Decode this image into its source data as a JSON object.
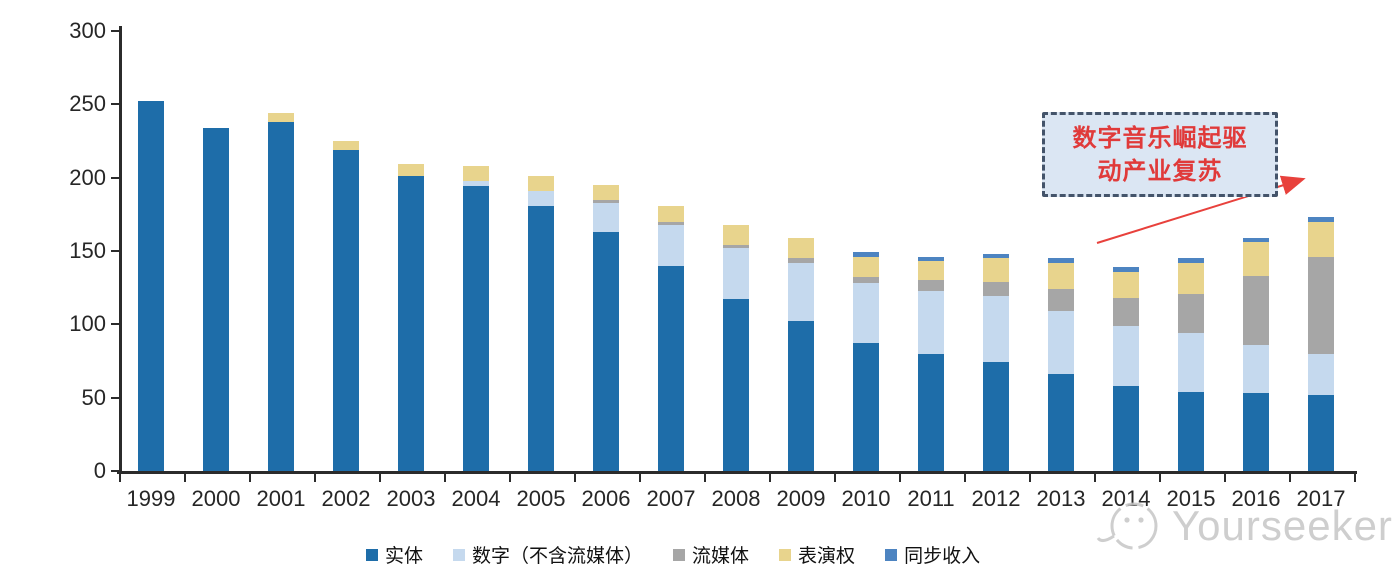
{
  "chart_data": {
    "type": "bar",
    "variant": "stacked",
    "title": "",
    "xlabel": "",
    "ylabel": "",
    "ylim": [
      0,
      300
    ],
    "yticks": [
      0,
      50,
      100,
      150,
      200,
      250,
      300
    ],
    "grid": false,
    "legend_position": "bottom",
    "categories": [
      "1999",
      "2000",
      "2001",
      "2002",
      "2003",
      "2004",
      "2005",
      "2006",
      "2007",
      "2008",
      "2009",
      "2010",
      "2011",
      "2012",
      "2013",
      "2014",
      "2015",
      "2016",
      "2017"
    ],
    "series": [
      {
        "name": "实体",
        "color": "#1e6da9",
        "values": [
          252,
          234,
          238,
          219,
          201,
          194,
          181,
          163,
          140,
          117,
          102,
          87,
          80,
          74,
          66,
          58,
          54,
          53,
          52
        ]
      },
      {
        "name": "数字（不含流媒体）",
        "color": "#c5d9ee",
        "values": [
          0,
          0,
          0,
          0,
          0,
          4,
          10,
          20,
          28,
          35,
          40,
          41,
          43,
          45,
          43,
          41,
          40,
          33,
          28
        ]
      },
      {
        "name": "流媒体",
        "color": "#a6a6a6",
        "values": [
          0,
          0,
          0,
          0,
          0,
          0,
          0,
          2,
          2,
          2,
          3,
          4,
          7,
          10,
          15,
          19,
          27,
          47,
          66
        ]
      },
      {
        "name": "表演权",
        "color": "#e8d48d",
        "values": [
          0,
          0,
          6,
          6,
          8,
          10,
          10,
          10,
          11,
          14,
          14,
          14,
          13,
          16,
          18,
          18,
          21,
          23,
          24
        ]
      },
      {
        "name": "同步收入",
        "color": "#4d84c1",
        "values": [
          0,
          0,
          0,
          0,
          0,
          0,
          0,
          0,
          0,
          0,
          0,
          3,
          3,
          3,
          3,
          3,
          3,
          3,
          3
        ]
      }
    ]
  },
  "annotation": {
    "line1": "数字音乐崛起驱",
    "line2": "动产业复苏",
    "text_color": "#e03a3a",
    "box_fill": "#dbe6f3",
    "border_color": "#44546a",
    "arrow_color": "#e8413c"
  },
  "watermark": {
    "text": "Yourseeker",
    "color": "#c6c6c6"
  }
}
